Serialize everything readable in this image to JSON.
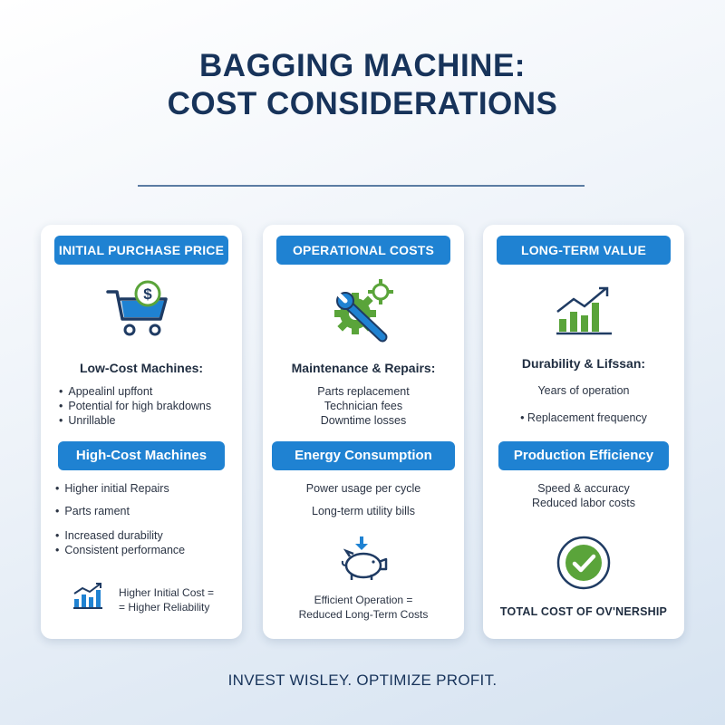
{
  "title": {
    "line1": "BAGGING MACHINE:",
    "line2": "COST CONSIDERATIONS"
  },
  "colors": {
    "title": "#17335a",
    "pill": "#1f82d2",
    "icon_blue": "#1f82d2",
    "icon_green": "#5aa43a",
    "icon_navy": "#1f3b63"
  },
  "cards": [
    {
      "header": "INITIAL PURCHASE PRICE",
      "icon": "shopping-cart-dollar-icon",
      "sub1": "Low-Cost Machines:",
      "bullets1": [
        "Appealinl upffont",
        "Potential for high brakdowns",
        "Unrillable"
      ],
      "pill2": "High-Cost Machines",
      "bullets2": [
        "Higher initial Repairs",
        "Parts rament",
        "Increased durability",
        "Consistent performance"
      ],
      "footer_icon": "rising-bar-chart-icon",
      "footer": [
        "Higher Initial Cost =",
        "= Higher Reliability"
      ]
    },
    {
      "header": "OPERATIONAL COSTS",
      "icon": "gears-wrench-icon",
      "sub1": "Maintenance & Repairs:",
      "lines1": [
        "Parts replacement",
        "Technician fees",
        "Downtime losses"
      ],
      "pill2": "Energy Consumption",
      "lines2": [
        "Power usage per cycle",
        "Long-term utility bills"
      ],
      "footer_icon": "piggy-bank-icon",
      "footer": [
        "Efficient Operation =",
        "Reduced Long-Term Costs"
      ]
    },
    {
      "header": "LONG-TERM VALUE",
      "icon": "growth-chart-icon",
      "sub1": "Durability & Lifssan:",
      "lines1": [
        "Years of operation",
        "• Replacement frequency"
      ],
      "pill2": "Production Efficiency",
      "lines2": [
        "Speed & accuracy",
        "Reduced labor costs"
      ],
      "footer_icon": "check-circle-icon",
      "footer": [
        "TOTAL COST OF OV'NERSHIP"
      ]
    }
  ],
  "tagline": "INVEST WISLEY. OPTIMIZE PROFIT."
}
